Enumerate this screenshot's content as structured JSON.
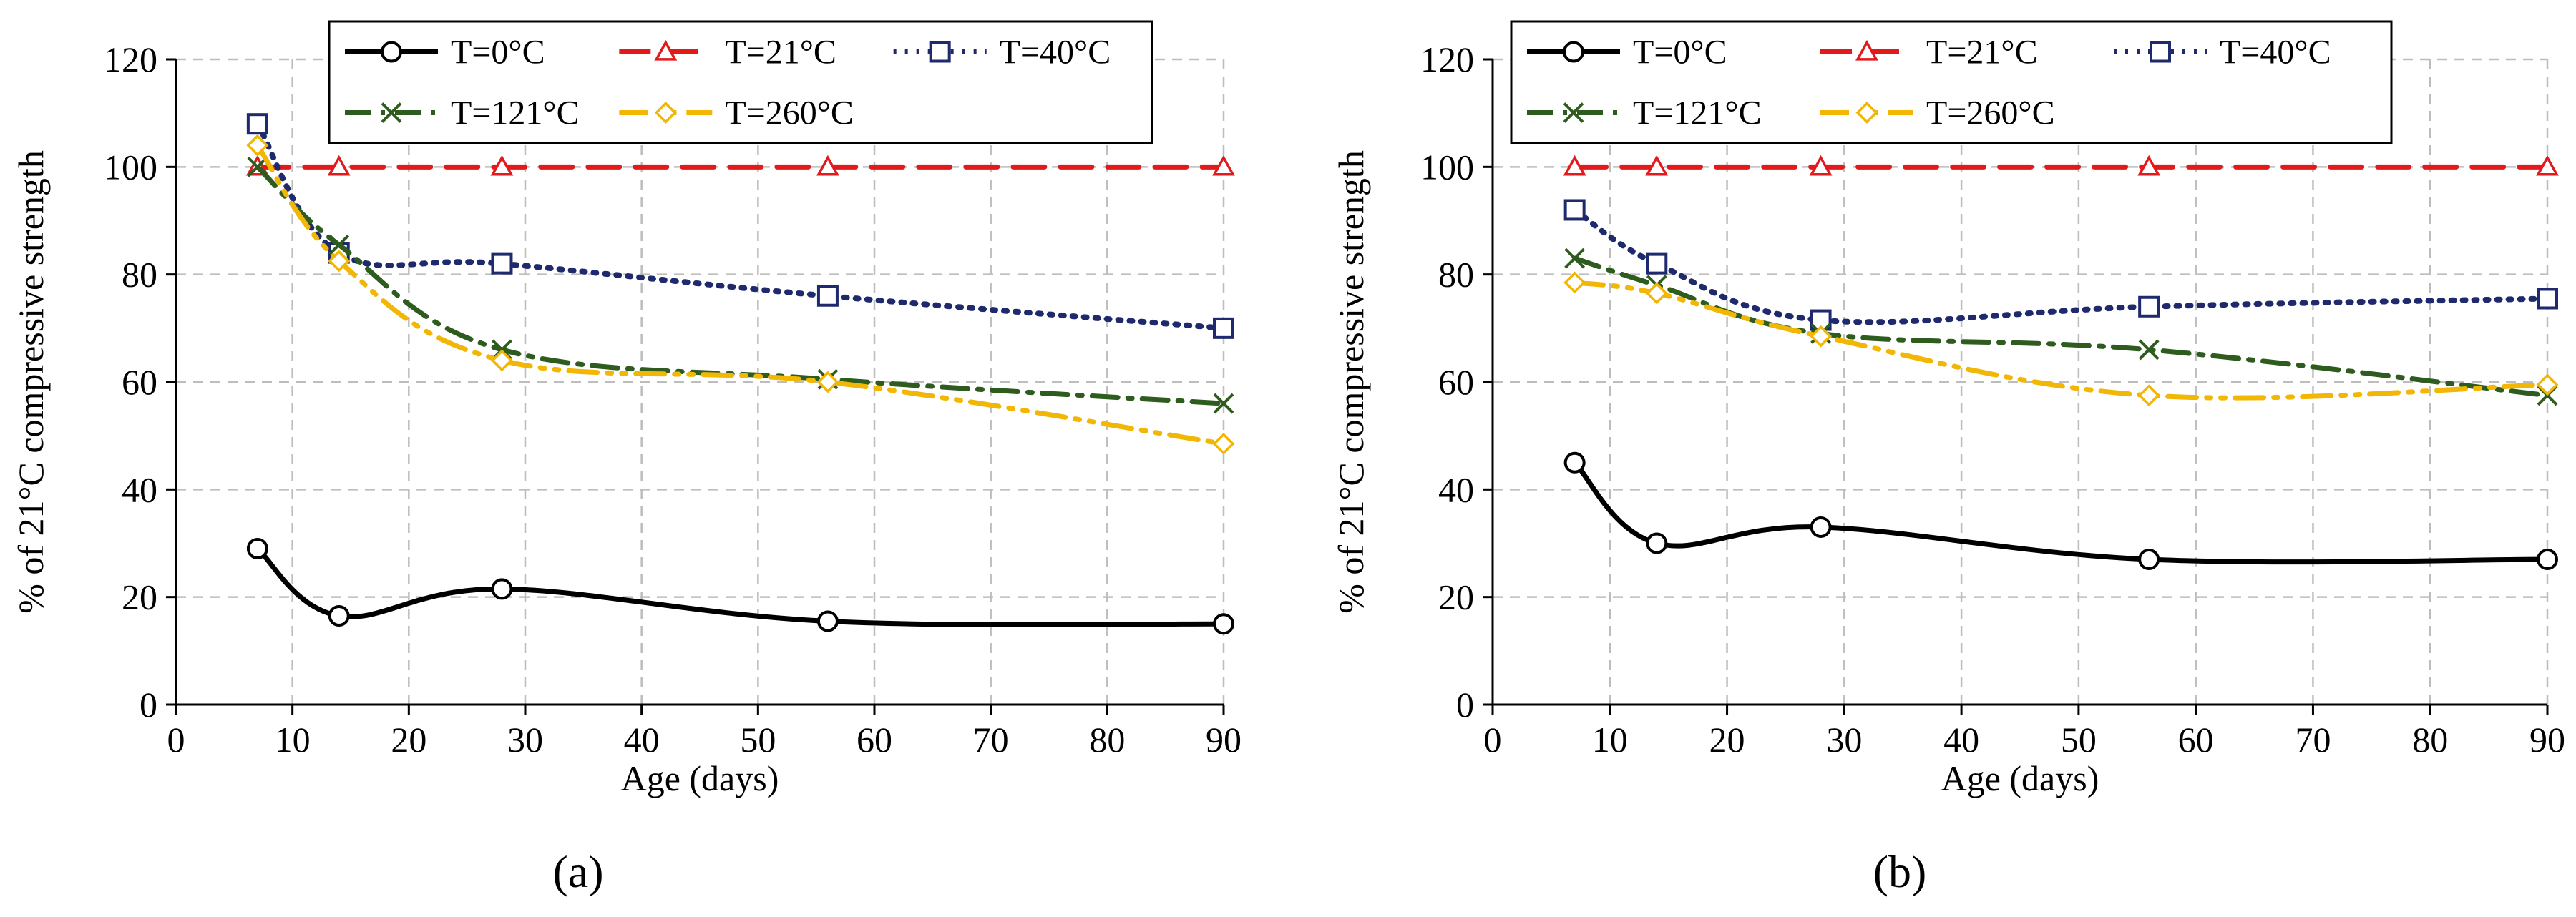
{
  "chart_data": [
    {
      "type": "line",
      "panel_label": "(a)",
      "xlabel": "Age (days)",
      "ylabel": "% of 21°C compressive strength",
      "xlim": [
        0,
        90
      ],
      "ylim": [
        0,
        120
      ],
      "xticks": [
        0,
        10,
        20,
        30,
        40,
        50,
        60,
        70,
        80,
        90
      ],
      "yticks": [
        0,
        20,
        40,
        60,
        80,
        100,
        120
      ],
      "grid": true,
      "legend_position": "top",
      "x": [
        7,
        14,
        28,
        56,
        90
      ],
      "series": [
        {
          "name": "T=0°C",
          "values": [
            29,
            16.5,
            21.5,
            15.5,
            15
          ]
        },
        {
          "name": "T=21°C",
          "values": [
            100,
            100,
            100,
            100,
            100
          ]
        },
        {
          "name": "T=40°C",
          "values": [
            108,
            84,
            82,
            76,
            70
          ]
        },
        {
          "name": "T=121°C",
          "values": [
            100,
            85.5,
            66,
            60.5,
            56
          ]
        },
        {
          "name": "T=260°C",
          "values": [
            104,
            82.5,
            64,
            60,
            48.5
          ]
        }
      ]
    },
    {
      "type": "line",
      "panel_label": "(b)",
      "xlabel": "Age (days)",
      "ylabel": "% of 21°C compressive strength",
      "xlim": [
        0,
        90
      ],
      "ylim": [
        0,
        120
      ],
      "xticks": [
        0,
        10,
        20,
        30,
        40,
        50,
        60,
        70,
        80,
        90
      ],
      "yticks": [
        0,
        20,
        40,
        60,
        80,
        100,
        120
      ],
      "grid": true,
      "legend_position": "top",
      "x": [
        7,
        14,
        28,
        56,
        90
      ],
      "series": [
        {
          "name": "T=0°C",
          "values": [
            45,
            30,
            33,
            27,
            27
          ]
        },
        {
          "name": "T=21°C",
          "values": [
            100,
            100,
            100,
            100,
            100
          ]
        },
        {
          "name": "T=40°C",
          "values": [
            92,
            82,
            71.5,
            74,
            75.5
          ]
        },
        {
          "name": "T=121°C",
          "values": [
            83,
            78,
            69,
            66,
            57.5
          ]
        },
        {
          "name": "T=260°C",
          "values": [
            78.5,
            76.5,
            68.5,
            57.5,
            59.5
          ]
        }
      ]
    }
  ],
  "series_styles": {
    "T=0°C": {
      "color": "#000000",
      "dash": "",
      "marker": "circle"
    },
    "T=21°C": {
      "color": "#e31a1c",
      "dash": "44 22",
      "marker": "triangle"
    },
    "T=40°C": {
      "color": "#1f2a6e",
      "dash": "4 12",
      "marker": "square"
    },
    "T=121°C": {
      "color": "#2e5b1e",
      "dash": "36 14 6 14",
      "marker": "x"
    },
    "T=260°C": {
      "color": "#f2b705",
      "dash": "40 14 6 14 6 14",
      "marker": "diamond"
    }
  }
}
